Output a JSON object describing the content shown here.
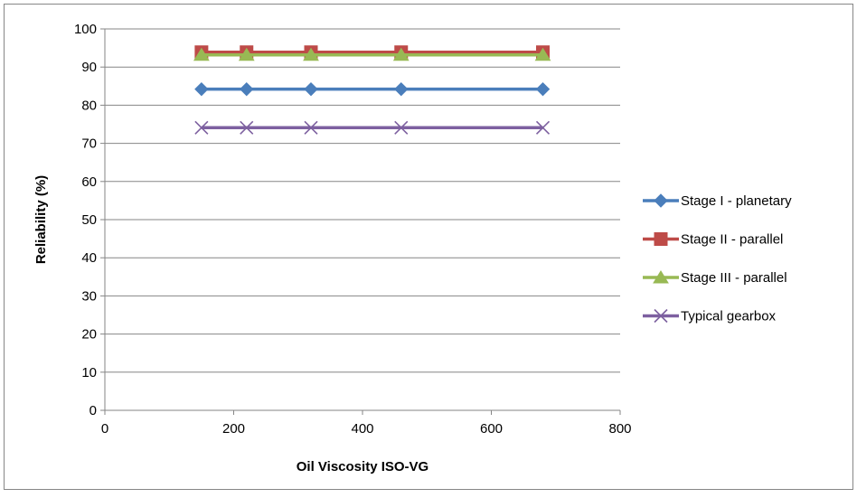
{
  "chart_data": {
    "type": "line",
    "title": "",
    "xlabel": "Oil Viscosity ISO-VG",
    "ylabel": "Reliability (%)",
    "xlim": [
      0,
      800
    ],
    "ylim": [
      0,
      100
    ],
    "xticks": [
      0,
      200,
      400,
      600,
      800
    ],
    "yticks": [
      0,
      10,
      20,
      30,
      40,
      50,
      60,
      70,
      80,
      90,
      100
    ],
    "grid": "horizontal",
    "legend_position": "right",
    "x": [
      150,
      220,
      320,
      460,
      680
    ],
    "series": [
      {
        "name": "Stage I - planetary",
        "values": [
          84.2,
          84.2,
          84.2,
          84.2,
          84.2
        ],
        "color": "#4a7ebb",
        "marker": "diamond"
      },
      {
        "name": "Stage II - parallel",
        "values": [
          93.9,
          93.9,
          93.9,
          93.9,
          93.9
        ],
        "color": "#be4b48",
        "marker": "square"
      },
      {
        "name": "Stage III - parallel",
        "values": [
          93.2,
          93.2,
          93.2,
          93.2,
          93.2
        ],
        "color": "#98b954",
        "marker": "triangle"
      },
      {
        "name": "Typical gearbox",
        "values": [
          74.1,
          74.1,
          74.1,
          74.1,
          74.1
        ],
        "color": "#7d60a0",
        "marker": "x"
      }
    ]
  },
  "colors": {
    "frame_border": "#868686",
    "gridline": "#868686",
    "axis_line": "#868686"
  }
}
